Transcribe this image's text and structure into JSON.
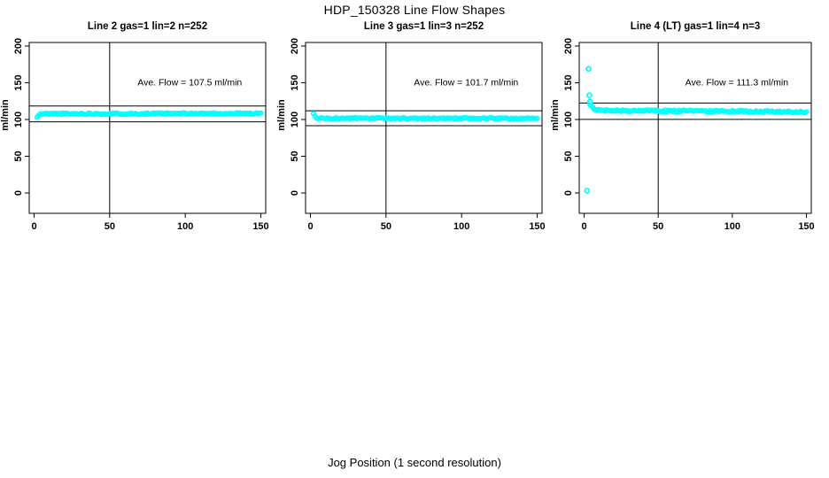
{
  "figure": {
    "title": "HDP_150328  Line Flow Shapes",
    "xlabel": "Jog Position (1 second resolution)"
  },
  "chart_data": {
    "type": "scatter",
    "title": "HDP_150328  Line Flow Shapes",
    "xlabel": "Jog Position (1 second resolution)",
    "ylabel": "ml/min",
    "point_color": "#00FFFF",
    "line_color": "#000000",
    "x_ticks": [
      0,
      50,
      100,
      150
    ],
    "y_ticks": [
      0,
      50,
      100,
      150,
      200
    ],
    "xlim": [
      0,
      150
    ],
    "ylim": [
      0,
      200
    ],
    "grid": false,
    "legend": "none",
    "panels": [
      {
        "title": "Line 2 gas=1 lin=2 n=252",
        "line": "Line 2",
        "gas": 1,
        "lin": 2,
        "n": 252,
        "ave_flow": 107.5,
        "annotation": "Ave. Flow =  107.5  ml/min",
        "vline_x": 50,
        "ref_lines_y": [
          118.3,
          96.8
        ],
        "x_start": 2,
        "x_end": 150,
        "x_step": 1,
        "noise_amplitude": 1.1,
        "noise_seed": 11,
        "series_trend": [
          [
            2,
            103
          ],
          [
            3,
            105.5
          ],
          [
            4,
            107
          ],
          [
            6,
            107.8
          ],
          [
            80,
            108
          ],
          [
            150,
            108.3
          ]
        ],
        "outliers": []
      },
      {
        "title": "Line 3 gas=1 lin=3 n=252",
        "line": "Line 3",
        "gas": 1,
        "lin": 3,
        "n": 252,
        "ave_flow": 101.7,
        "annotation": "Ave. Flow =  101.7  ml/min",
        "vline_x": 50,
        "ref_lines_y": [
          111.9,
          91.5
        ],
        "x_start": 2,
        "x_end": 150,
        "x_step": 1,
        "noise_amplitude": 0.9,
        "noise_seed": 23,
        "series_trend": [
          [
            2,
            107.5
          ],
          [
            3,
            104.5
          ],
          [
            4,
            102.5
          ],
          [
            6,
            101.6
          ],
          [
            150,
            101.5
          ]
        ],
        "outliers": []
      },
      {
        "title": "Line 4 (LT) gas=1 lin=4 n=3",
        "line": "Line 4 (LT)",
        "gas": 1,
        "lin": 4,
        "n": 3,
        "ave_flow": 111.3,
        "annotation": "Ave. Flow =  111.3  ml/min",
        "vline_x": 50,
        "ref_lines_y": [
          122.4,
          100.2
        ],
        "x_start": 4,
        "x_end": 150,
        "x_step": 1,
        "noise_amplitude": 1.2,
        "noise_seed": 37,
        "series_trend": [
          [
            4,
            121
          ],
          [
            5,
            117.5
          ],
          [
            6,
            115
          ],
          [
            8,
            113
          ],
          [
            20,
            112
          ],
          [
            60,
            111.8
          ],
          [
            100,
            111.2
          ],
          [
            150,
            110.2
          ]
        ],
        "outliers": [
          [
            2,
            3
          ],
          [
            3,
            169
          ],
          [
            3.5,
            133
          ],
          [
            4,
            124
          ]
        ]
      }
    ]
  }
}
